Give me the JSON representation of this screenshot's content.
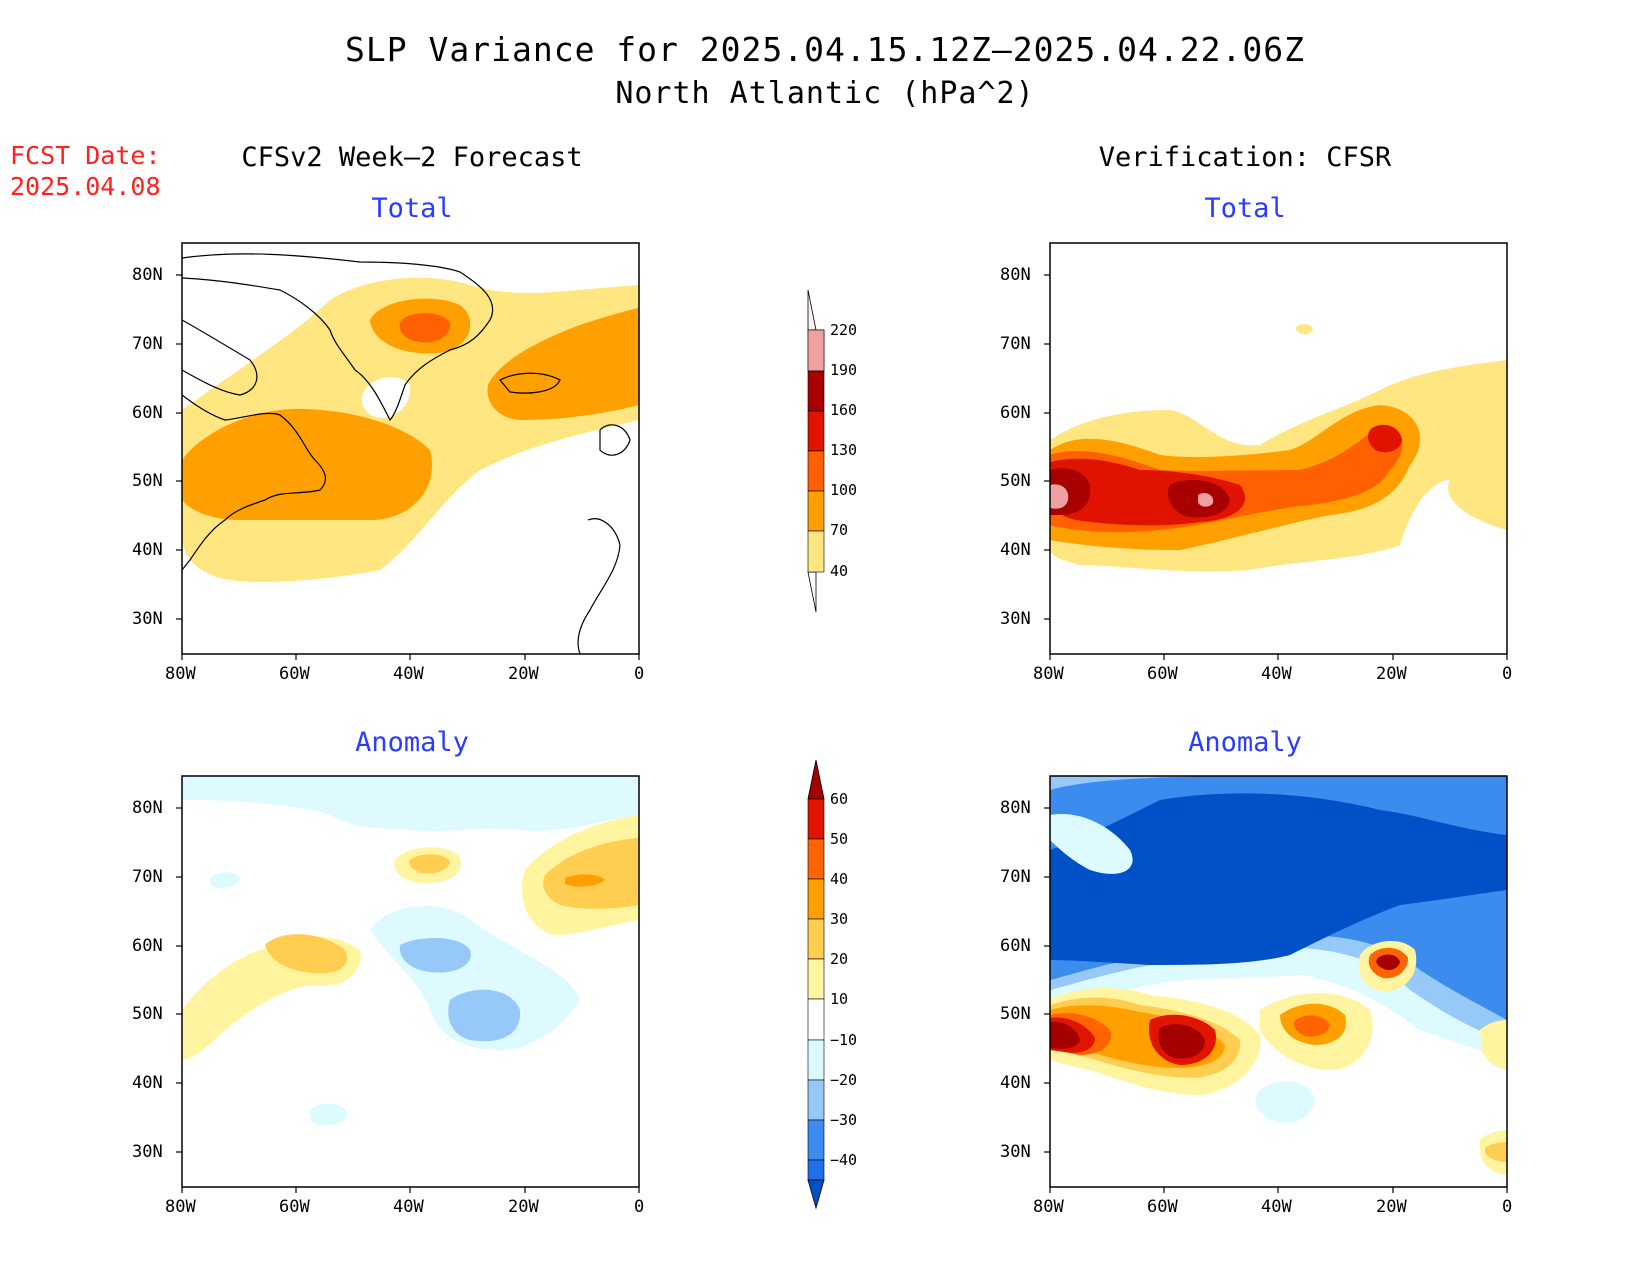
{
  "title": {
    "line1": "SLP Variance for 2025.04.15.12Z–2025.04.22.06Z",
    "line2": "North Atlantic (hPa^2)"
  },
  "forecast_date": {
    "label": "FCST Date:",
    "value": "2025.04.08"
  },
  "columns": {
    "left": "CFSv2 Week–2 Forecast",
    "right": "Verification: CFSR"
  },
  "panel_titles": {
    "total": "Total",
    "anomaly": "Anomaly"
  },
  "axes": {
    "lat_labels": [
      "30N",
      "40N",
      "50N",
      "60N",
      "70N",
      "80N"
    ],
    "lon_labels": [
      "80W",
      "60W",
      "40W",
      "20W",
      "0"
    ]
  },
  "colorbars": {
    "total": {
      "levels": [
        "40",
        "70",
        "100",
        "130",
        "160",
        "190",
        "220"
      ],
      "colors": [
        "#ffe680",
        "#ff9f00",
        "#ff6000",
        "#e01200",
        "#a80000",
        "#f0a0a0",
        "#ffdada",
        "#fff2f2"
      ]
    },
    "anomaly": {
      "levels": [
        "−40",
        "−30",
        "−20",
        "−10",
        "10",
        "20",
        "30",
        "40",
        "50",
        "60"
      ],
      "colors": [
        "#0050c8",
        "#1e6fe8",
        "#3c8cf0",
        "#96c8f8",
        "#dcfaff",
        "#ffffff",
        "#fff5a0",
        "#ffcd50",
        "#ffa000",
        "#ff6400",
        "#e01400",
        "#a50000"
      ]
    }
  },
  "colors": {
    "title_blue": "#2a3cff",
    "fcst_red": "#ff2020"
  }
}
